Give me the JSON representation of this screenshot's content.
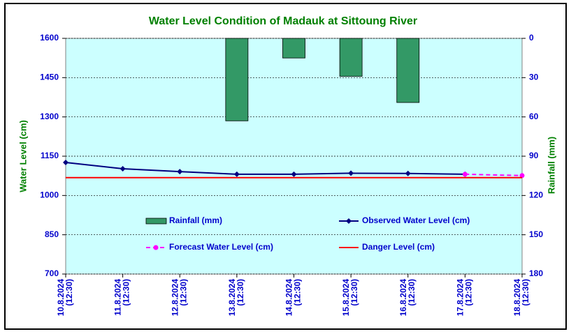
{
  "chart_data": {
    "type": "combo",
    "title": "Water Level Condition of Madauk at Sittoung River",
    "ylabel": "Water Level (cm)",
    "y2label": "Rainfall (mm)",
    "categories": [
      "10.8.2024 (12:30)",
      "11.8.2024 (12:30)",
      "12.8.2024 (12:30)",
      "13.8.2024 (12:30)",
      "14.8.2024 (12:30)",
      "15.8.2024 (12:30)",
      "16.8.2024 (12:30)",
      "17.8.2024 (12:30)",
      "18.8.2024 (12:30)"
    ],
    "ylim": [
      700,
      1600
    ],
    "yticks": [
      700,
      850,
      1000,
      1150,
      1300,
      1450,
      1600
    ],
    "y2lim": [
      0,
      180
    ],
    "y2ticks": [
      0,
      30,
      60,
      90,
      120,
      150,
      180
    ],
    "y2_reversed": true,
    "grid": true,
    "series": [
      {
        "name": "Rainfall (mm)",
        "kind": "bar",
        "axis": "y2",
        "color": "#339966",
        "values": [
          0,
          0,
          0,
          63,
          15,
          29,
          49,
          0,
          0
        ]
      },
      {
        "name": "Observed Water Level (cm)",
        "kind": "line",
        "marker": "diamond",
        "color": "#000080",
        "values": [
          1126,
          1102,
          1091,
          1081,
          1081,
          1085,
          1084,
          1081,
          null
        ]
      },
      {
        "name": "Forecast Water Level (cm)",
        "kind": "line",
        "marker": "circle",
        "dashed": true,
        "color": "#ff00ff",
        "values": [
          null,
          null,
          null,
          null,
          null,
          null,
          null,
          1081,
          1076
        ]
      },
      {
        "name": "Danger Level (cm)",
        "kind": "line",
        "color": "#ff0000",
        "values": [
          1068,
          1068,
          1068,
          1068,
          1068,
          1068,
          1068,
          1068,
          1068
        ]
      }
    ]
  }
}
